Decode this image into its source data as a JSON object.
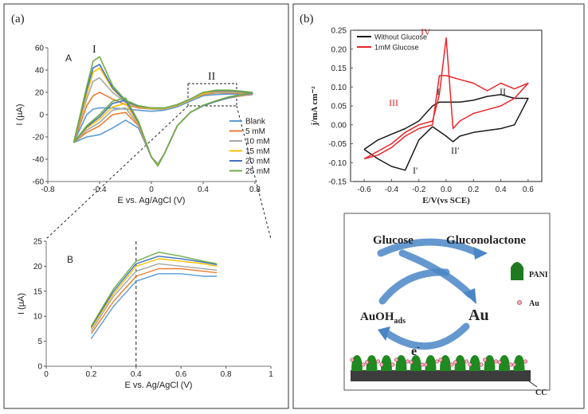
{
  "panels": [
    "(a)",
    "(b)"
  ],
  "chart_data": [
    {
      "type": "line",
      "xlabel": "E vs. Ag/AgCl (V)",
      "ylabel": "I (µA)",
      "annotations": [
        "A",
        "I",
        "II"
      ],
      "xlim": [
        -0.8,
        0.8
      ],
      "xticks": [
        -0.8,
        -0.4,
        0,
        0.4,
        0.8
      ],
      "ylim": [
        -60,
        60
      ],
      "yticks": [
        -60,
        -40,
        -20,
        0,
        20,
        40,
        60
      ],
      "x": [
        -0.6,
        -0.5,
        -0.45,
        -0.4,
        -0.3,
        -0.2,
        -0.1,
        0,
        0.1,
        0.2,
        0.3,
        0.4,
        0.5,
        0.6,
        0.7,
        0.78,
        0.7,
        0.6,
        0.5,
        0.4,
        0.3,
        0.2,
        0.1,
        0.05,
        0,
        -0.1,
        -0.2,
        -0.3,
        -0.4,
        -0.5,
        -0.6
      ],
      "series": [
        {
          "name": "Blank",
          "color": "#5b9bd5",
          "values": [
            -25,
            0,
            5,
            6,
            6,
            5,
            4,
            3,
            4,
            7,
            12,
            17,
            18,
            18.5,
            18,
            18,
            17,
            15,
            12,
            8,
            2,
            -10,
            -35,
            -44,
            -38,
            -12,
            -5,
            -12,
            -18,
            -20,
            -25
          ]
        },
        {
          "name": "5 mM",
          "color": "#ed7d31",
          "values": [
            -25,
            8,
            17,
            20,
            14,
            9,
            6,
            5,
            5,
            8,
            13,
            18,
            19.5,
            19.5,
            19,
            18.5,
            17,
            15,
            12,
            8,
            2,
            -10,
            -35,
            -45,
            -38,
            -10,
            2,
            0,
            -10,
            -16,
            -25
          ]
        },
        {
          "name": "10 mM",
          "color": "#a5a5a5",
          "values": [
            -25,
            14,
            30,
            33,
            20,
            11,
            7,
            5,
            5,
            8,
            13,
            18.5,
            20,
            20,
            19.5,
            19,
            17.5,
            15,
            12,
            8,
            2,
            -10,
            -35,
            -45,
            -38,
            -9,
            6,
            4,
            -7,
            -14,
            -25
          ]
        },
        {
          "name": "15 mM",
          "color": "#ffc000",
          "values": [
            -25,
            18,
            38,
            42,
            23,
            12,
            7,
            5.5,
            5.5,
            8.5,
            13.5,
            19,
            21,
            21,
            20,
            19.5,
            18,
            15.5,
            12,
            8,
            2,
            -10,
            -35,
            -45,
            -38,
            -8,
            10,
            7,
            -4,
            -12,
            -25
          ]
        },
        {
          "name": "20 mM",
          "color": "#4472c4",
          "values": [
            -25,
            22,
            42,
            45,
            24,
            12,
            7.5,
            6,
            6,
            9,
            14,
            20,
            21.5,
            21.5,
            20.5,
            19.5,
            18,
            15.5,
            12,
            8,
            2,
            -10,
            -35,
            -46,
            -38,
            -7,
            13,
            10,
            -2,
            -11,
            -25
          ]
        },
        {
          "name": "25 mM",
          "color": "#70ad47",
          "values": [
            -25,
            25,
            48,
            52,
            26,
            13,
            8,
            6,
            6,
            9,
            14,
            20,
            22,
            22,
            21,
            20,
            18,
            16,
            12.5,
            8.5,
            2,
            -10,
            -35,
            -46,
            -38,
            -6,
            15,
            12,
            0,
            -10,
            -25
          ]
        }
      ]
    },
    {
      "type": "line",
      "xlabel": "E vs. Ag/AgCl (V)",
      "ylabel": "I (µA)",
      "annotations": [
        "B"
      ],
      "vline": 0.4,
      "xlim": [
        0,
        1
      ],
      "xticks": [
        0,
        0.2,
        0.4,
        0.6,
        0.8,
        1
      ],
      "ylim": [
        0,
        25
      ],
      "yticks": [
        0,
        5,
        10,
        15,
        20,
        25
      ],
      "x": [
        0.2,
        0.3,
        0.4,
        0.5,
        0.6,
        0.7,
        0.76
      ],
      "series": [
        {
          "color": "#5b9bd5",
          "values": [
            5.5,
            12,
            17,
            18.5,
            18.5,
            18,
            18
          ]
        },
        {
          "color": "#ed7d31",
          "values": [
            6.5,
            13,
            18,
            19.5,
            19.5,
            19,
            18.7
          ]
        },
        {
          "color": "#a5a5a5",
          "values": [
            7,
            14,
            19,
            20.5,
            20,
            19.5,
            19.2
          ]
        },
        {
          "color": "#ffc000",
          "values": [
            7.5,
            14.5,
            20,
            21.5,
            21,
            20.5,
            20
          ]
        },
        {
          "color": "#4472c4",
          "values": [
            7.8,
            15,
            20.5,
            22,
            21.5,
            20.8,
            20.3
          ]
        },
        {
          "color": "#70ad47",
          "values": [
            8,
            15.5,
            21,
            22.8,
            22,
            21,
            20.5
          ]
        }
      ]
    },
    {
      "type": "line",
      "xlabel": "E/V(vs SCE)",
      "ylabel": "j/mA cm⁻²",
      "annotations": [
        "IV",
        "III",
        "I",
        "II",
        "II′",
        "I′"
      ],
      "xlim": [
        -0.7,
        0.7
      ],
      "xticks": [
        -0.6,
        -0.4,
        -0.2,
        {
          "value": 0,
          "label": "0.0"
        },
        0.2,
        0.4,
        0.6
      ],
      "ylim": [
        -0.15,
        0.25
      ],
      "yticks": [
        -0.15,
        {
          "value": -0.1,
          "label": "-0.10"
        },
        -0.05,
        {
          "value": 0,
          "label": "0.00"
        },
        0.05,
        {
          "value": 0.1,
          "label": "0.10"
        },
        0.15,
        {
          "value": 0.2,
          "label": "0.20"
        },
        0.25
      ],
      "series": [
        {
          "name": "Without Glucose",
          "color": "#1a1a1a",
          "x": [
            -0.6,
            -0.5,
            -0.4,
            -0.3,
            -0.2,
            -0.1,
            -0.05,
            0,
            0.1,
            0.2,
            0.3,
            0.4,
            0.5,
            0.6,
            0.5,
            0.4,
            0.3,
            0.2,
            0.1,
            0.05,
            0,
            -0.1,
            -0.2,
            -0.3,
            -0.4,
            -0.5,
            -0.6
          ],
          "values": [
            -0.065,
            -0.04,
            -0.025,
            -0.01,
            0.01,
            0.05,
            0.06,
            0.06,
            0.06,
            0.065,
            0.075,
            0.08,
            0.07,
            0.07,
            0,
            -0.01,
            -0.015,
            -0.02,
            -0.03,
            -0.045,
            -0.03,
            -0.005,
            -0.04,
            -0.12,
            -0.11,
            -0.09,
            -0.065
          ]
        },
        {
          "name": "1mM Glucose",
          "color": "#e8262a",
          "x": [
            -0.6,
            -0.5,
            -0.4,
            -0.3,
            -0.2,
            -0.1,
            -0.05,
            0,
            0.05,
            0.1,
            0.2,
            0.3,
            0.4,
            0.5,
            0.6,
            0.5,
            0.4,
            0.3,
            0.2,
            0.1,
            0,
            -0.05,
            -0.1,
            -0.2,
            -0.3,
            -0.4,
            -0.5,
            -0.6
          ],
          "values": [
            -0.09,
            -0.07,
            -0.05,
            -0.02,
            0,
            0.01,
            0.08,
            0.23,
            -0.01,
            0.01,
            0.03,
            0.04,
            0.05,
            0.07,
            0.11,
            0.095,
            0.11,
            0.09,
            0.11,
            0.12,
            0.13,
            0.13,
            0,
            -0.01,
            -0.03,
            -0.06,
            -0.08,
            -0.09
          ]
        }
      ]
    }
  ],
  "diagram": {
    "nodes": [
      "Glucose",
      "Gluconolactone",
      "AuOH",
      "Au"
    ],
    "subscript": "ads",
    "electron": "e",
    "electron_charge": "-",
    "legend": [
      "PANI",
      "Au"
    ],
    "substrate": "CC"
  }
}
